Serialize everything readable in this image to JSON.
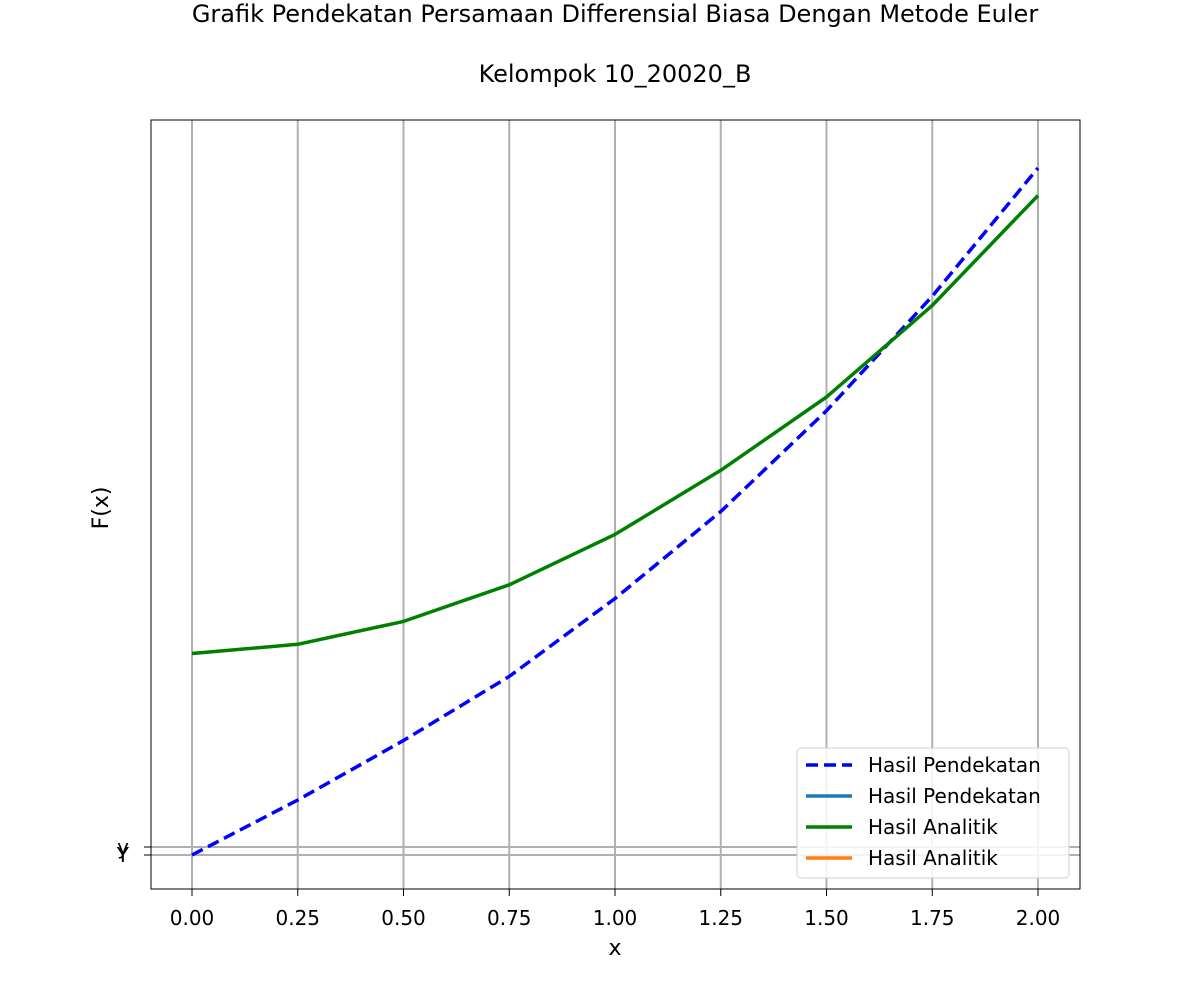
{
  "chart_data": {
    "type": "line",
    "title": "Grafik Pendekatan Persamaan Differensial Biasa Dengan Metode Euler",
    "subtitle": "Kelompok 10_20020_B",
    "xlabel": "x",
    "ylabel": "F(x)",
    "xlim": [
      -0.1,
      2.1
    ],
    "x_ticks": [
      "0.00",
      "0.25",
      "0.50",
      "0.75",
      "1.00",
      "1.25",
      "1.50",
      "1.75",
      "2.00"
    ],
    "y_ticks": [
      "y",
      "Y"
    ],
    "grid": true,
    "legend_position": "lower-right",
    "series": [
      {
        "name": "Hasil Pendekatan",
        "style": "dashed",
        "color": "#0000ff",
        "x": [
          0,
          0.25,
          0.5,
          0.75,
          1.0,
          1.25,
          1.5,
          1.75,
          2.0
        ],
        "y": [
          0,
          0.12,
          0.25,
          0.39,
          0.56,
          0.75,
          0.97,
          1.22,
          1.5
        ]
      },
      {
        "name": "Hasil Pendekatan",
        "style": "solid",
        "color": "#1f77b4",
        "x": [],
        "y": []
      },
      {
        "name": "Hasil Analitik",
        "style": "solid",
        "color": "#008000",
        "x": [
          0,
          0.25,
          0.5,
          0.75,
          1.0,
          1.25,
          1.5,
          1.75,
          2.0
        ],
        "y": [
          0.44,
          0.46,
          0.51,
          0.59,
          0.7,
          0.84,
          1.0,
          1.2,
          1.44
        ]
      },
      {
        "name": "Hasil Analitik",
        "style": "solid",
        "color": "#ff7f0e",
        "x": [],
        "y": []
      }
    ]
  }
}
